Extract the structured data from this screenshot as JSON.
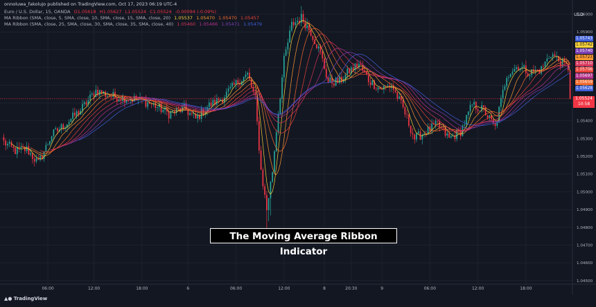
{
  "header": {
    "published": "onnoluwa_fakolujo published on TradingView.com, Oct 17, 2023 06:19 UTC-4",
    "symbol": "Euro / U.S. Dollar, 15, OANDA",
    "ohlc": {
      "O": "O1.05618",
      "H": "H1.05627",
      "L": "L1.05524",
      "C": "C1.05524",
      "change": "-0.00094 (-0.09%)"
    },
    "ribbon1": {
      "label": "MA Ribbon (SMA, close, 5, SMA, close, 10, SMA, close, 15, SMA, close, 20)",
      "values": [
        "1.05537",
        "1.05470",
        "1.05470",
        "1.05457"
      ]
    },
    "ribbon2": {
      "label": "MA Ribbon (SMA, close, 25, SMA, close, 30, SMA, close, 35, SMA, close, 40)",
      "values": [
        "1.05460",
        "1.05466",
        "1.05471",
        "1.05479"
      ]
    }
  },
  "currency": "USD",
  "colors": {
    "background": "#131722",
    "up": "#26a69a",
    "down": "#f23645",
    "ma": [
      "#f7d23b",
      "#fb9a30",
      "#f46a2e",
      "#e8413a",
      "#d6345a",
      "#b5328a",
      "#7b3fb3",
      "#3f5fd9"
    ]
  },
  "price_badges": [
    {
      "label": "1.05743",
      "color": "#3f5fd9",
      "value": 1.05743
    },
    {
      "label": "1.05742",
      "color": "#f7d23b",
      "value": 1.05742
    },
    {
      "label": "1.05740",
      "color": "#7b3fb3",
      "value": 1.0574
    },
    {
      "label": "1.05723",
      "color": "#fb9a30",
      "value": 1.05723
    },
    {
      "label": "1.05710",
      "color": "#d6345a",
      "value": 1.0571
    },
    {
      "label": "1.05706",
      "color": "#e8413a",
      "value": 1.05706
    },
    {
      "label": "1.05697",
      "color": "#b5328a",
      "value": 1.05697
    },
    {
      "label": "1.05659",
      "color": "#f46a2e",
      "value": 1.05659
    },
    {
      "label": "1.05628",
      "color": "#3f5fd9",
      "value": 1.05628
    }
  ],
  "last_price": {
    "label": "1.05524",
    "countdown": "10:58",
    "value": 1.05524
  },
  "caption": "The Moving Average Ribbon Indicator",
  "footer": {
    "logo": "TradingView"
  },
  "chart_data": {
    "type": "candlestick",
    "y_range": [
      1.0448,
      1.0608
    ],
    "y_ticks": [
      {
        "value": 1.06,
        "label": "1.06000"
      },
      {
        "value": 1.059,
        "label": "1.05900"
      },
      {
        "value": 1.058,
        "label": "1.05800"
      },
      {
        "value": 1.057,
        "label": "1.05700"
      },
      {
        "value": 1.056,
        "label": "1.05600"
      },
      {
        "value": 1.055,
        "label": "1.05500"
      },
      {
        "value": 1.054,
        "label": "1.05400"
      },
      {
        "value": 1.053,
        "label": "1.05300"
      },
      {
        "value": 1.052,
        "label": "1.05200"
      },
      {
        "value": 1.051,
        "label": "1.05100"
      },
      {
        "value": 1.05,
        "label": "1.05000"
      },
      {
        "value": 1.049,
        "label": "1.04900"
      },
      {
        "value": 1.048,
        "label": "1.04800"
      },
      {
        "value": 1.047,
        "label": "1.04700"
      },
      {
        "value": 1.046,
        "label": "1.04600"
      },
      {
        "value": 1.045,
        "label": "1.04500"
      }
    ],
    "x_ticks": [
      {
        "label": "06:00",
        "bar": 23
      },
      {
        "label": "12:00",
        "bar": 47
      },
      {
        "label": "18:00",
        "bar": 72
      },
      {
        "label": "6",
        "bar": 96
      },
      {
        "label": "06:00",
        "bar": 121
      },
      {
        "label": "12:00",
        "bar": 146
      },
      {
        "label": "8",
        "bar": 167
      },
      {
        "label": "20:30",
        "bar": 181
      },
      {
        "label": "9",
        "bar": 197
      },
      {
        "label": "06:00",
        "bar": 222
      },
      {
        "label": "12:00",
        "bar": 247
      },
      {
        "label": "18:00",
        "bar": 272
      }
    ],
    "waypoints": [
      [
        0,
        1.0528
      ],
      [
        6,
        1.0523
      ],
      [
        12,
        1.0524
      ],
      [
        18,
        1.0516
      ],
      [
        25,
        1.0532
      ],
      [
        32,
        1.0538
      ],
      [
        40,
        1.0546
      ],
      [
        48,
        1.0557
      ],
      [
        55,
        1.0554
      ],
      [
        62,
        1.0553
      ],
      [
        70,
        1.0552
      ],
      [
        78,
        1.0549
      ],
      [
        86,
        1.0544
      ],
      [
        94,
        1.0547
      ],
      [
        100,
        1.0541
      ],
      [
        106,
        1.0548
      ],
      [
        114,
        1.0553
      ],
      [
        122,
        1.0562
      ],
      [
        127,
        1.0566
      ],
      [
        131,
        1.0552
      ],
      [
        134,
        1.0512
      ],
      [
        137,
        1.049
      ],
      [
        140,
        1.0512
      ],
      [
        142,
        1.0535
      ],
      [
        146,
        1.0574
      ],
      [
        150,
        1.0594
      ],
      [
        155,
        1.0598
      ],
      [
        160,
        1.059
      ],
      [
        165,
        1.0578
      ],
      [
        169,
        1.0562
      ],
      [
        175,
        1.0562
      ],
      [
        180,
        1.0568
      ],
      [
        185,
        1.0572
      ],
      [
        190,
        1.0563
      ],
      [
        196,
        1.0558
      ],
      [
        202,
        1.056
      ],
      [
        208,
        1.0547
      ],
      [
        214,
        1.053
      ],
      [
        220,
        1.0534
      ],
      [
        226,
        1.0538
      ],
      [
        232,
        1.053
      ],
      [
        238,
        1.0534
      ],
      [
        244,
        1.0549
      ],
      [
        250,
        1.0546
      ],
      [
        256,
        1.0536
      ],
      [
        262,
        1.0566
      ],
      [
        268,
        1.0571
      ],
      [
        274,
        1.0567
      ],
      [
        280,
        1.0569
      ],
      [
        285,
        1.0578
      ],
      [
        290,
        1.0573
      ],
      [
        295,
        1.0569
      ]
    ],
    "ma_periods": [
      5,
      10,
      15,
      20,
      25,
      30,
      35,
      40
    ]
  }
}
